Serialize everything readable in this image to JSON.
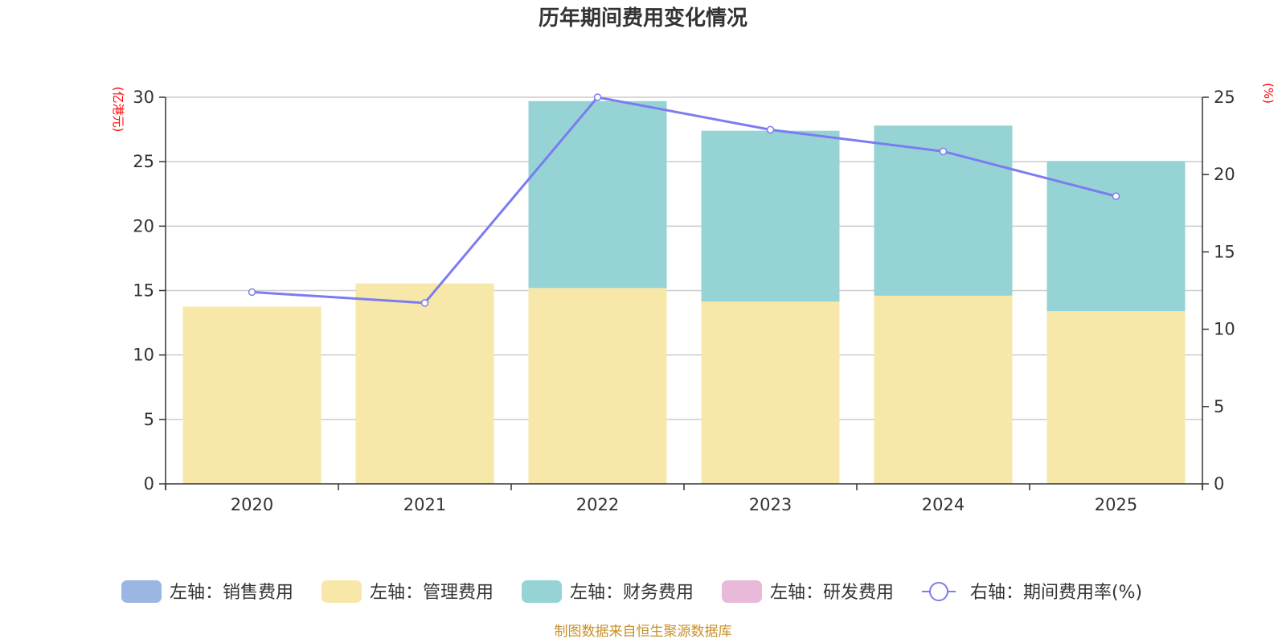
{
  "chart_data": {
    "type": "bar",
    "title": "历年期间费用变化情况",
    "categories": [
      "2020",
      "2021",
      "2022",
      "2023",
      "2024",
      "2025"
    ],
    "left_axis": {
      "label": "(亿港元)",
      "ylim": [
        0,
        30
      ],
      "ticks": [
        "0",
        "5",
        "10",
        "15",
        "20",
        "25",
        "30"
      ]
    },
    "right_axis": {
      "label": "(%)",
      "ylim": [
        0,
        25
      ],
      "ticks": [
        "0",
        "5",
        "10",
        "15",
        "20",
        "25"
      ]
    },
    "series": [
      {
        "name": "左轴：销售费用",
        "axis": "left",
        "kind": "bar",
        "color": "#9bb6e3",
        "values": [
          0,
          0,
          0,
          0,
          0,
          0
        ]
      },
      {
        "name": "左轴：管理费用",
        "axis": "left",
        "kind": "bar",
        "color": "#f7e7a8",
        "values": [
          13.75,
          15.55,
          15.2,
          14.15,
          14.6,
          13.4
        ]
      },
      {
        "name": "左轴：财务费用",
        "axis": "left",
        "kind": "bar",
        "color": "#96d3d5",
        "values": [
          0,
          0,
          14.5,
          13.25,
          13.2,
          11.65
        ]
      },
      {
        "name": "左轴：研发费用",
        "axis": "left",
        "kind": "bar",
        "color": "#e8b9d9",
        "values": [
          0,
          0,
          0,
          0,
          0,
          0
        ]
      },
      {
        "name": "右轴：期间费用率(%)",
        "axis": "right",
        "kind": "line",
        "color": "#7b7cf0",
        "values": [
          12.4,
          11.7,
          25.0,
          22.9,
          21.5,
          18.6
        ]
      }
    ],
    "grid": true,
    "legend_position": "bottom"
  },
  "source": "制图数据来自恒生聚源数据库"
}
